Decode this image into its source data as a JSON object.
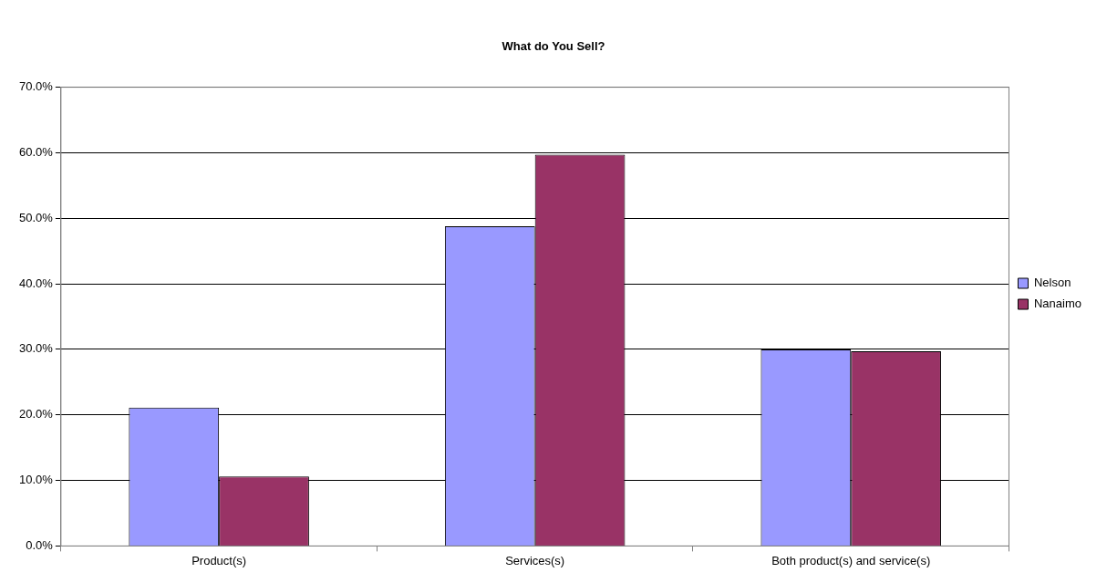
{
  "chart_data": {
    "type": "bar",
    "title": "What do You Sell?",
    "categories": [
      "Product(s)",
      "Services(s)",
      "Both product(s) and service(s)"
    ],
    "series": [
      {
        "name": "Nelson",
        "color": "#9999ff",
        "values": [
          21.1,
          48.8,
          30.0
        ]
      },
      {
        "name": "Nanaimo",
        "color": "#993366",
        "values": [
          10.6,
          59.7,
          29.7
        ]
      }
    ],
    "ylim": [
      0,
      70
    ],
    "yticks": [
      {
        "value": 0,
        "label": "0.0%"
      },
      {
        "value": 10,
        "label": "10.0%"
      },
      {
        "value": 20,
        "label": "20.0%"
      },
      {
        "value": 30,
        "label": "30.0%"
      },
      {
        "value": 40,
        "label": "40.0%"
      },
      {
        "value": 50,
        "label": "50.0%"
      },
      {
        "value": 60,
        "label": "60.0%"
      },
      {
        "value": 70,
        "label": "70.0%"
      }
    ],
    "grid": "y",
    "legend": "right"
  }
}
